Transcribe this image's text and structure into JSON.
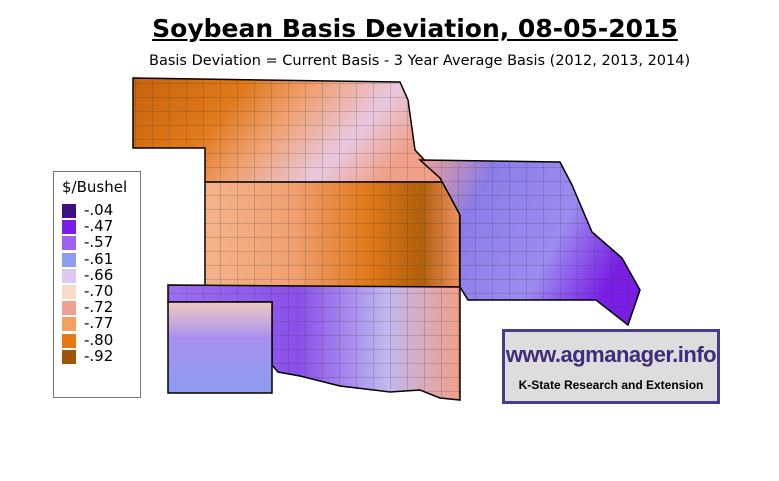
{
  "title": "Soybean Basis Deviation, 08-05-2015",
  "subtitle": "Basis Deviation = Current Basis - 3 Year Average Basis (2012, 2013, 2014)",
  "legend": {
    "title": "$/Bushel",
    "items": [
      {
        "label": "-.04",
        "color": "#3d0d82"
      },
      {
        "label": "-.47",
        "color": "#7a1ee6"
      },
      {
        "label": "-.57",
        "color": "#a060f0"
      },
      {
        "label": "-.61",
        "color": "#8c9cf0"
      },
      {
        "label": "-.66",
        "color": "#dcc8f0"
      },
      {
        "label": "-.70",
        "color": "#f8dcc8"
      },
      {
        "label": "-.72",
        "color": "#f0a090"
      },
      {
        "label": "-.77",
        "color": "#f4a060"
      },
      {
        "label": "-.80",
        "color": "#e87810"
      },
      {
        "label": "-.92",
        "color": "#a0520a"
      }
    ]
  },
  "logo": {
    "url": "www.agmanager.info",
    "org": "K-State Research and Extension"
  }
}
